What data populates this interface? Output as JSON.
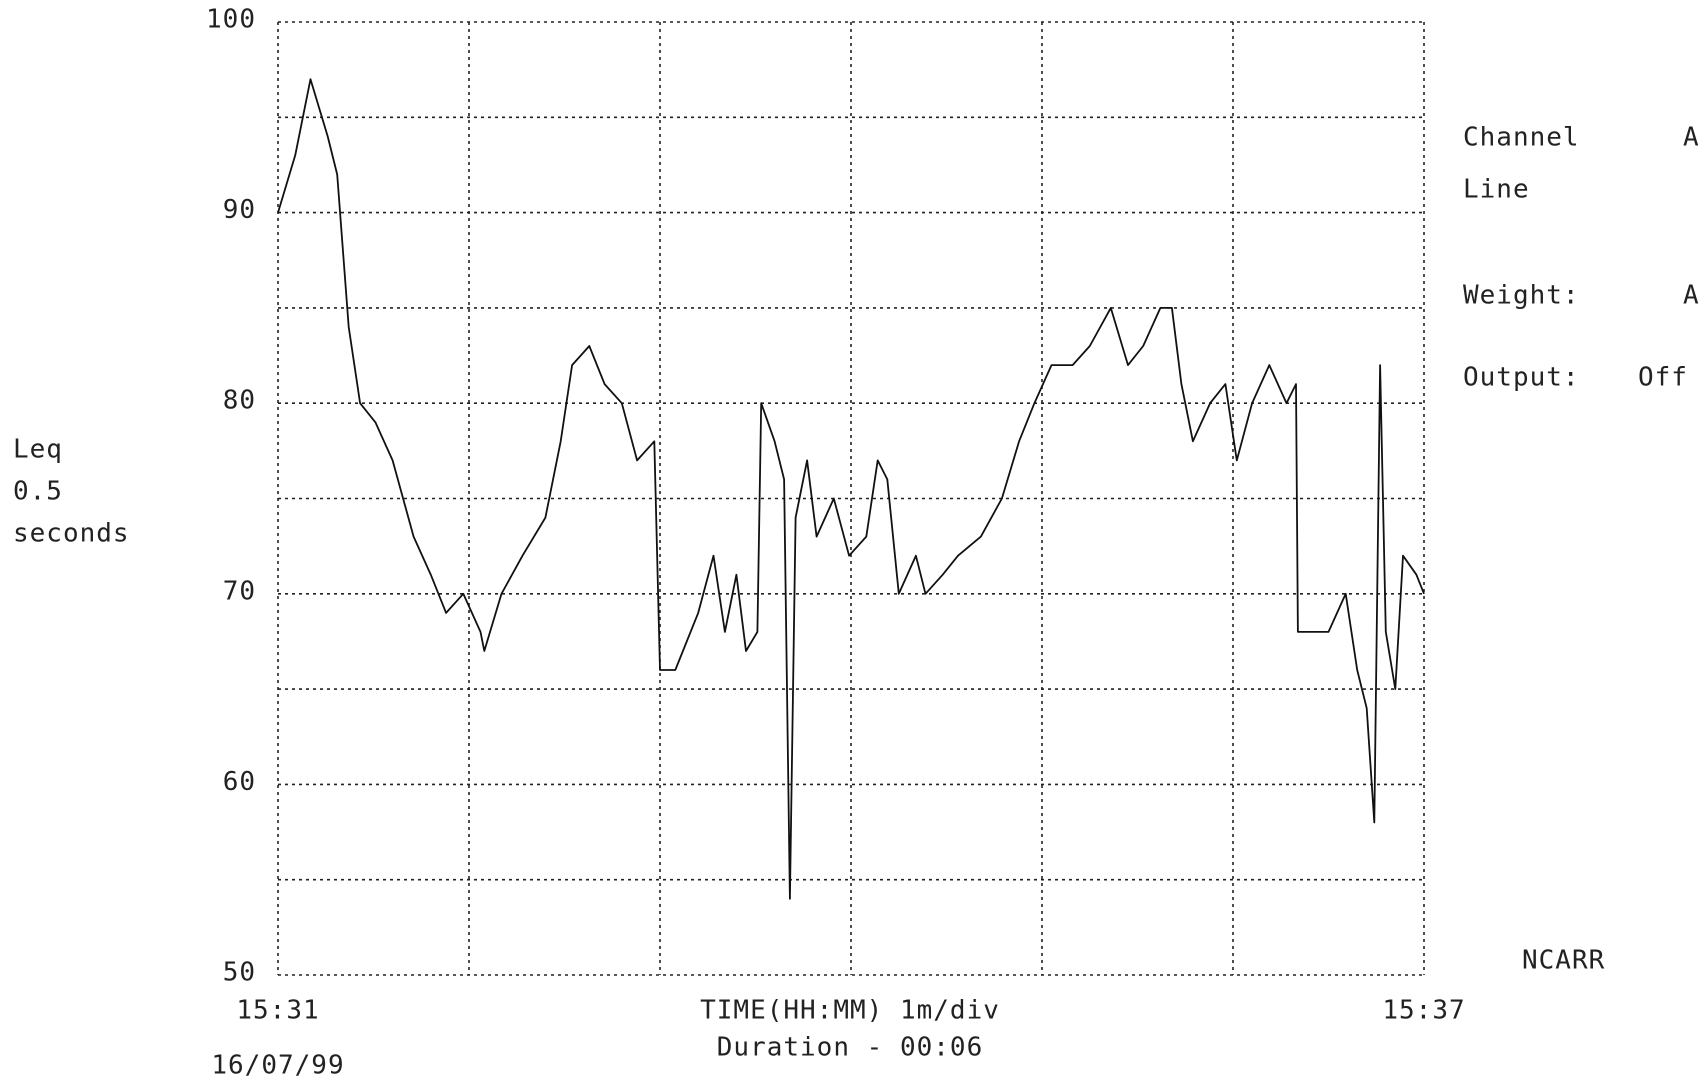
{
  "chart_data": {
    "type": "line",
    "ylabel": [
      "Leq",
      "0.5",
      "seconds"
    ],
    "xlabel": "TIME(HH:MM) 1m/div",
    "duration": "Duration - 00:06",
    "date": "16/07/99",
    "info": [
      {
        "label": "Channel",
        "value": "A"
      },
      {
        "label": "Line"
      },
      {
        "label": "Weight:",
        "value": "A"
      },
      {
        "label": "Output:",
        "value": "Off"
      }
    ],
    "operator": "NCARR",
    "xlim": [
      0,
      6
    ],
    "xticks": [
      {
        "value": 0,
        "label": "15:31"
      },
      {
        "value": 6,
        "label": "15:37"
      }
    ],
    "xticks_minor": [
      1,
      2,
      3,
      4,
      5
    ],
    "ylim": [
      50,
      100
    ],
    "yticks": [
      50,
      60,
      70,
      80,
      90,
      100
    ],
    "yticks_minor": [
      55,
      65,
      75,
      85,
      95
    ],
    "grid": true,
    "color": "#111111",
    "x": [
      0,
      0.09,
      0.17,
      0.26,
      0.31,
      0.37,
      0.43,
      0.51,
      0.6,
      0.71,
      0.8,
      0.88,
      0.97,
      1.06,
      1.08,
      1.17,
      1.28,
      1.4,
      1.48,
      1.54,
      1.63,
      1.71,
      1.8,
      1.88,
      1.97,
      2.0,
      2.08,
      2.2,
      2.28,
      2.34,
      2.4,
      2.45,
      2.51,
      2.53,
      2.6,
      2.65,
      2.68,
      2.71,
      2.77,
      2.82,
      2.91,
      2.99,
      3.08,
      3.14,
      3.19,
      3.25,
      3.34,
      3.39,
      3.48,
      3.56,
      3.68,
      3.79,
      3.88,
      3.96,
      4.05,
      4.16,
      4.25,
      4.36,
      4.45,
      4.53,
      4.62,
      4.68,
      4.73,
      4.79,
      4.88,
      4.96,
      5.02,
      5.1,
      5.19,
      5.28,
      5.33,
      5.34,
      5.42,
      5.5,
      5.59,
      5.65,
      5.7,
      5.74,
      5.77,
      5.8,
      5.85,
      5.89,
      5.96,
      6.0
    ],
    "values": [
      90,
      93,
      97,
      94,
      92,
      84,
      80,
      79,
      77,
      73,
      71,
      69,
      70,
      68,
      67,
      70,
      72,
      74,
      78,
      82,
      83,
      81,
      80,
      77,
      78,
      66,
      66,
      69,
      72,
      68,
      71,
      67,
      68,
      80,
      78,
      76,
      54,
      74,
      77,
      73,
      75,
      72,
      73,
      77,
      76,
      70,
      72,
      70,
      71,
      72,
      73,
      75,
      78,
      80,
      82,
      82,
      83,
      85,
      82,
      83,
      85,
      85,
      81,
      78,
      80,
      81,
      77,
      80,
      82,
      80,
      81,
      68,
      68,
      68,
      70,
      66,
      64,
      58,
      82,
      68,
      65,
      72,
      71,
      70
    ]
  }
}
